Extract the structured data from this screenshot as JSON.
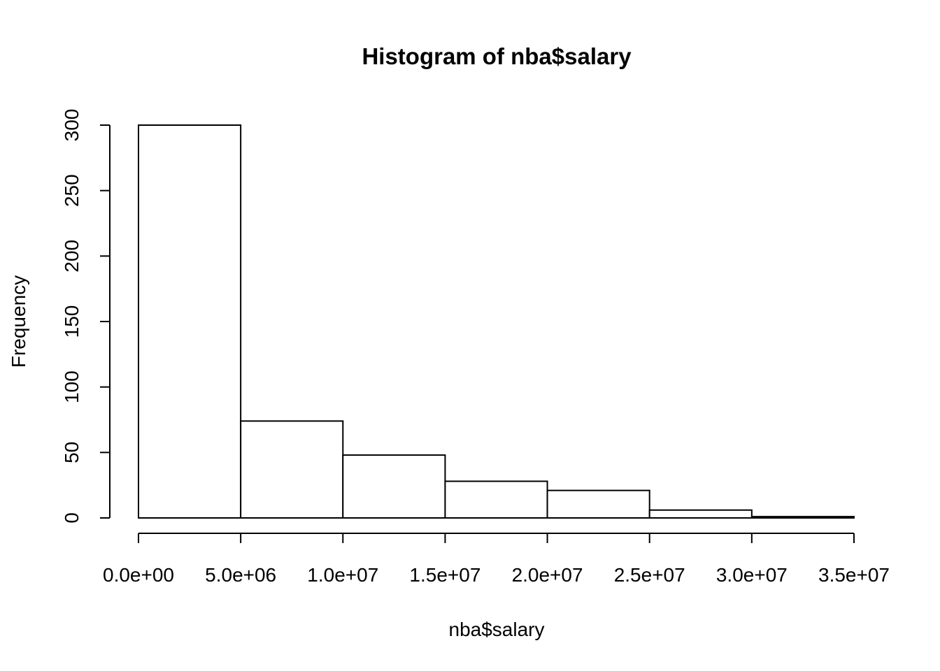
{
  "chart_data": {
    "type": "bar",
    "title": "Histogram of nba$salary",
    "xlabel": "nba$salary",
    "ylabel": "Frequency",
    "bin_edges": [
      0,
      5000000,
      10000000,
      15000000,
      20000000,
      25000000,
      30000000,
      35000000
    ],
    "values": [
      300,
      74,
      48,
      28,
      21,
      6,
      1
    ],
    "x_ticks": [
      0,
      5000000,
      10000000,
      15000000,
      20000000,
      25000000,
      30000000,
      35000000
    ],
    "x_tick_labels": [
      "0.0e+00",
      "5.0e+06",
      "1.0e+07",
      "1.5e+07",
      "2.0e+07",
      "2.5e+07",
      "3.0e+07",
      "3.5e+07"
    ],
    "y_ticks": [
      0,
      50,
      100,
      150,
      200,
      250,
      300
    ],
    "y_tick_labels": [
      "0",
      "50",
      "100",
      "150",
      "200",
      "250",
      "300"
    ],
    "xlim": [
      0,
      35000000
    ],
    "ylim": [
      0,
      300
    ],
    "grid": false,
    "colors": {
      "bar_fill": "#ffffff",
      "bar_stroke": "#000000"
    }
  }
}
